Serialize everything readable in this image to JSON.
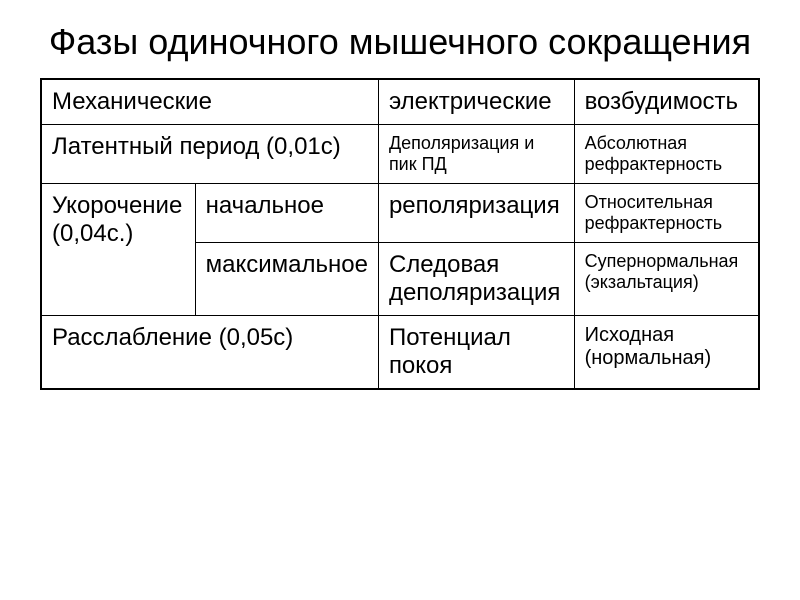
{
  "title": "Фазы одиночного мышечного сокращения",
  "table": {
    "headers": {
      "mechanical": "Механические",
      "electrical": "электрические",
      "excitability": "возбудимость"
    },
    "rows": {
      "latent": {
        "mechanical": "Латентный период (0,01с)",
        "electrical": "Деполяризация и пик ПД",
        "excitability": "Абсолютная рефрактерность"
      },
      "shortening": {
        "mechanical_label": "Укорочение   (0,04с.)",
        "initial": {
          "sublabel": "начальное",
          "electrical": "реполяризация",
          "excitability": "Относительная рефрактерность"
        },
        "maximal": {
          "sublabel": "максимальное",
          "electrical": "Следовая деполяризация",
          "excitability": "Супернормальная (экзальтация)"
        }
      },
      "relaxation": {
        "mechanical": "Расслабление  (0,05с)",
        "electrical": "Потенциал покоя",
        "excitability": "Исходная (нормальная)"
      }
    }
  },
  "style": {
    "background_color": "#ffffff",
    "text_color": "#000000",
    "border_color": "#000000",
    "title_fontsize": 36,
    "header_fontsize": 24,
    "large_cell_fontsize": 24,
    "small_cell_fontsize": 18,
    "font_family": "Arial"
  }
}
